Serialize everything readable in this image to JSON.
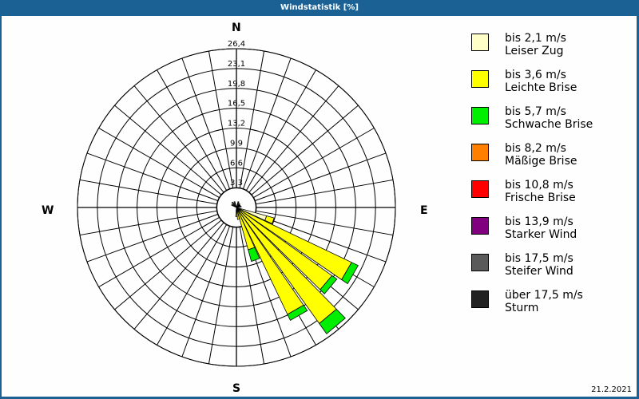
{
  "window": {
    "title": "Windstatistik [%]",
    "frame_color": "#1c6194",
    "background": "#fdfefd"
  },
  "compass": {
    "north": "N",
    "east": "E",
    "south": "S",
    "west": "W"
  },
  "footer": {
    "date": "21.2.2021"
  },
  "legend": [
    {
      "line1": "bis 2,1 m/s",
      "line2": "Leiser Zug",
      "color": "#ffffc8"
    },
    {
      "line1": "bis 3,6 m/s",
      "line2": "Leichte Brise",
      "color": "#ffff00"
    },
    {
      "line1": "bis 5,7 m/s",
      "line2": "Schwache Brise",
      "color": "#00ee00"
    },
    {
      "line1": "bis 8,2 m/s",
      "line2": "Mäßige Brise",
      "color": "#ff8000"
    },
    {
      "line1": "bis 10,8 m/s",
      "line2": "Frische Brise",
      "color": "#ff0000"
    },
    {
      "line1": "bis 13,9 m/s",
      "line2": "Starker Wind",
      "color": "#800080"
    },
    {
      "line1": "bis 17,5 m/s",
      "line2": "Steifer Wind",
      "color": "#5a5a5a"
    },
    {
      "line1": "über 17,5 m/s",
      "line2": "Sturm",
      "color": "#222222"
    }
  ],
  "chart_data": {
    "type": "wind-rose",
    "title": "Windstatistik [%]",
    "radial_unit": "%",
    "radial_ticks": [
      "3,3",
      "6,6",
      "9,9",
      "13,2",
      "16,5",
      "19,8",
      "23,1",
      "26,4"
    ],
    "radial_max": 26.4,
    "sector_width_deg": 10,
    "direction_labels": [
      "N",
      "E",
      "S",
      "W"
    ],
    "speed_classes": [
      "bis 2,1 m/s",
      "bis 3,6 m/s",
      "bis 5,7 m/s",
      "bis 8,2 m/s",
      "bis 10,8 m/s",
      "bis 13,9 m/s",
      "bis 17,5 m/s",
      "über 17,5 m/s"
    ],
    "sectors": [
      {
        "bearing": 110,
        "values": [
          5.2,
          1.3,
          0,
          0,
          0,
          0,
          0,
          0
        ]
      },
      {
        "bearing": 120,
        "values": [
          0.8,
          20.4,
          1.2,
          0,
          0,
          0,
          0,
          0
        ]
      },
      {
        "bearing": 130,
        "values": [
          0.6,
          18.9,
          1.0,
          0,
          0,
          0,
          0,
          0
        ]
      },
      {
        "bearing": 140,
        "values": [
          0.6,
          23.1,
          2.1,
          0,
          0,
          0,
          0,
          0
        ]
      },
      {
        "bearing": 150,
        "values": [
          0.5,
          19.2,
          1.1,
          0,
          0,
          0,
          0,
          0
        ]
      },
      {
        "bearing": 160,
        "values": [
          0.4,
          6.9,
          2.0,
          0,
          0,
          0,
          0,
          0
        ]
      },
      {
        "bearing": 170,
        "values": [
          0.5,
          1.5,
          0,
          0,
          0,
          0,
          0,
          0
        ]
      },
      {
        "bearing": 180,
        "values": [
          0.5,
          1.0,
          0,
          0,
          0,
          0,
          0,
          0
        ]
      },
      {
        "bearing": 300,
        "values": [
          0.6,
          0.3,
          0,
          0,
          0,
          0,
          0,
          0
        ]
      },
      {
        "bearing": 320,
        "values": [
          0.8,
          0.3,
          0,
          0,
          0,
          0,
          0,
          0
        ]
      },
      {
        "bearing": 340,
        "values": [
          0.8,
          0.2,
          0,
          0,
          0,
          0,
          0,
          0
        ]
      },
      {
        "bearing": 20,
        "values": [
          0.8,
          0.2,
          0,
          0,
          0,
          0,
          0,
          0
        ]
      },
      {
        "bearing": 40,
        "values": [
          0.6,
          0.2,
          0,
          0,
          0,
          0,
          0,
          0
        ]
      },
      {
        "bearing": 60,
        "values": [
          0.5,
          0.2,
          0,
          0,
          0,
          0,
          0,
          0
        ]
      },
      {
        "bearing": 80,
        "values": [
          0.5,
          0.3,
          0,
          0,
          0,
          0,
          0,
          0
        ]
      }
    ]
  }
}
